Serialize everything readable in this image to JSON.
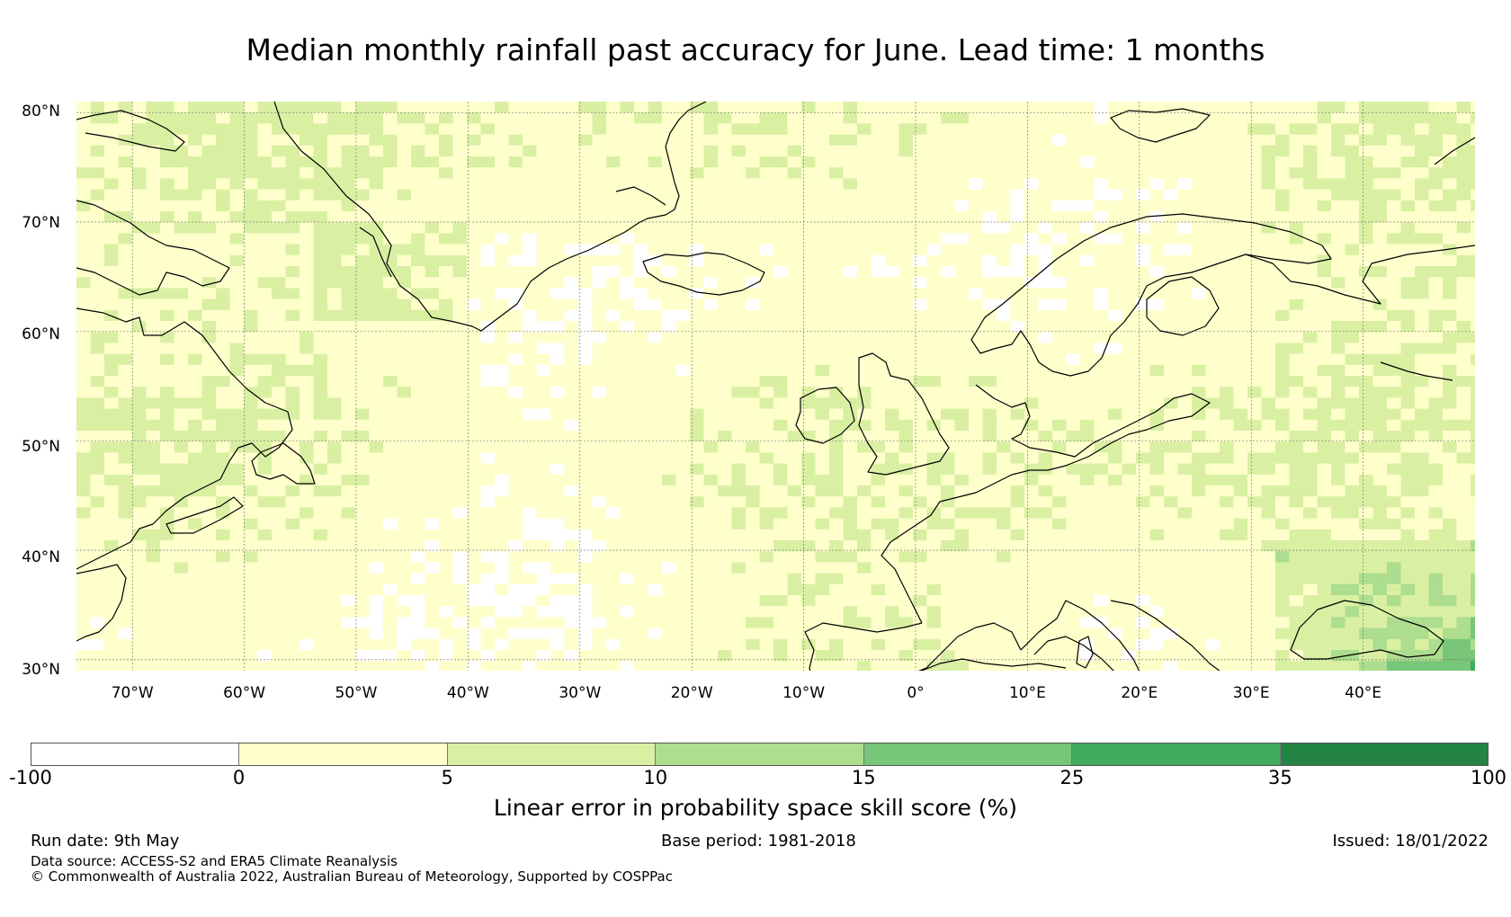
{
  "title": "Median monthly rainfall past accuracy for June. Lead time: 1 months",
  "map": {
    "lat_labels": [
      "80°N",
      "70°N",
      "60°N",
      "50°N",
      "40°N",
      "30°N"
    ],
    "lat_values": [
      80,
      70,
      60,
      50,
      40,
      30
    ],
    "lon_labels": [
      "70°W",
      "60°W",
      "50°W",
      "40°W",
      "30°W",
      "20°W",
      "10°W",
      "0°",
      "10°E",
      "20°E",
      "30°E",
      "40°E"
    ],
    "lon_values": [
      -70,
      -60,
      -50,
      -40,
      -30,
      -20,
      -10,
      0,
      10,
      20,
      30,
      40
    ],
    "extent": {
      "lon_min": -75,
      "lon_max": 50,
      "lat_min": 29,
      "lat_max": 81
    },
    "gridlines": true,
    "coastline_color": "#000000"
  },
  "colorbar": {
    "ticks": [
      "-100",
      "0",
      "5",
      "10",
      "15",
      "25",
      "35",
      "100"
    ],
    "colors": [
      "#ffffff",
      "#ffffcc",
      "#d9f0a3",
      "#addd8e",
      "#78c679",
      "#41ab5d",
      "#238443"
    ],
    "label": "Linear error in probability space skill score (%)"
  },
  "footer": {
    "run_date": "Run date: 9th May",
    "base_period": "Base period: 1981-2018",
    "issued": "Issued: 18/01/2022",
    "data_source": "Data source: ACCESS-S2 and ERA5 Climate Reanalysis",
    "copyright": "© Commonwealth of Australia 2022, Australian Bureau of Meteorology, Supported by COSPPac"
  }
}
